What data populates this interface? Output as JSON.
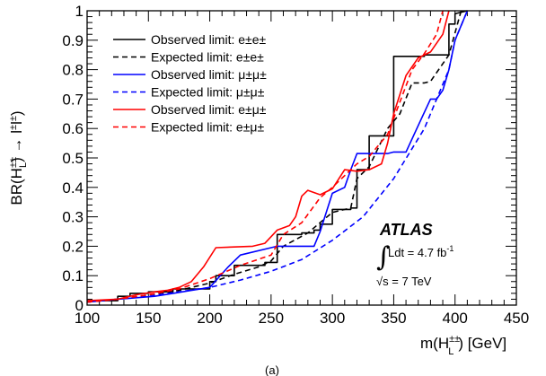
{
  "chart_data": {
    "type": "line",
    "xlabel_base": "m(H",
    "xlabel_sup": "±±",
    "xlabel_sub": "L",
    "xlabel_tail": ") [GeV]",
    "ylabel_base": "BR(H",
    "ylabel_sup": "±±",
    "ylabel_sub": "L",
    "ylabel_tail": " → l",
    "ylabel_tail_sup": "±",
    "ylabel_tail2": "l",
    "ylabel_tail2_sup": "±",
    "ylabel_close": ")",
    "xlim": [
      100,
      450
    ],
    "ylim": [
      0,
      1
    ],
    "x_ticks": [
      "100",
      "150",
      "200",
      "250",
      "300",
      "350",
      "400",
      "450"
    ],
    "y_ticks": [
      "0",
      "0.1",
      "0.2",
      "0.3",
      "0.4",
      "0.5",
      "0.6",
      "0.7",
      "0.8",
      "0.9",
      "1"
    ],
    "colors": {
      "ee": "#000000",
      "mumu": "#0000ff",
      "emu": "#ff0000"
    },
    "series": [
      {
        "name": "Observed limit: e±e±",
        "color": "#000000",
        "style": "solid",
        "x": [
          100,
          125,
          125,
          135,
          135,
          150,
          150,
          170,
          170,
          200,
          200,
          205,
          205,
          220,
          220,
          245,
          245,
          255,
          255,
          275,
          275,
          285,
          285,
          290,
          290,
          300,
          300,
          315,
          315,
          320,
          320,
          330,
          330,
          350,
          350,
          360,
          360,
          375,
          375,
          395,
          395,
          400,
          400,
          410
        ],
        "y": [
          0.015,
          0.015,
          0.03,
          0.03,
          0.04,
          0.04,
          0.045,
          0.045,
          0.055,
          0.055,
          0.08,
          0.08,
          0.1,
          0.1,
          0.135,
          0.135,
          0.145,
          0.145,
          0.24,
          0.24,
          0.245,
          0.245,
          0.255,
          0.255,
          0.275,
          0.275,
          0.325,
          0.325,
          0.33,
          0.33,
          0.46,
          0.46,
          0.575,
          0.575,
          0.845,
          0.845,
          0.845,
          0.845,
          0.85,
          0.85,
          0.955,
          0.955,
          0.99,
          1.0
        ]
      },
      {
        "name": "Expected limit: e±e±",
        "color": "#000000",
        "style": "dashed",
        "x": [
          100,
          125,
          150,
          175,
          200,
          220,
          240,
          250,
          260,
          280,
          300,
          315,
          320,
          330,
          345,
          355,
          365,
          375,
          380,
          395,
          405
        ],
        "y": [
          0.01,
          0.02,
          0.035,
          0.05,
          0.075,
          0.105,
          0.13,
          0.15,
          0.2,
          0.245,
          0.315,
          0.33,
          0.43,
          0.47,
          0.6,
          0.65,
          0.755,
          0.755,
          0.76,
          0.85,
          1.0
        ]
      },
      {
        "name": "Observed limit: μ±μ±",
        "color": "#0000ff",
        "style": "solid",
        "x": [
          100,
          125,
          140,
          155,
          170,
          185,
          200,
          215,
          225,
          250,
          255,
          265,
          275,
          285,
          290,
          300,
          310,
          315,
          320,
          335,
          345,
          350,
          360,
          370,
          380,
          385,
          390,
          395,
          400,
          410
        ],
        "y": [
          0.01,
          0.02,
          0.025,
          0.03,
          0.04,
          0.05,
          0.06,
          0.13,
          0.17,
          0.195,
          0.2,
          0.2,
          0.2,
          0.2,
          0.25,
          0.38,
          0.4,
          0.46,
          0.515,
          0.515,
          0.515,
          0.52,
          0.52,
          0.61,
          0.7,
          0.7,
          0.73,
          0.8,
          0.9,
          1.0
        ]
      },
      {
        "name": "Expected limit: μ±μ±",
        "color": "#0000ff",
        "style": "dashed",
        "x": [
          100,
          125,
          150,
          175,
          200,
          225,
          250,
          275,
          300,
          325,
          350,
          375,
          385,
          395,
          400,
          410
        ],
        "y": [
          0.01,
          0.02,
          0.03,
          0.045,
          0.06,
          0.085,
          0.115,
          0.155,
          0.22,
          0.3,
          0.43,
          0.6,
          0.7,
          0.8,
          0.9,
          1.0
        ]
      },
      {
        "name": "Observed limit: e±μ±",
        "color": "#ff0000",
        "style": "solid",
        "x": [
          100,
          125,
          140,
          155,
          165,
          175,
          185,
          195,
          205,
          235,
          245,
          255,
          265,
          270,
          275,
          280,
          290,
          300,
          310,
          320,
          330,
          340,
          345,
          350,
          360,
          370,
          380,
          390,
          395
        ],
        "y": [
          0.015,
          0.02,
          0.035,
          0.045,
          0.05,
          0.06,
          0.08,
          0.13,
          0.195,
          0.2,
          0.21,
          0.255,
          0.27,
          0.3,
          0.37,
          0.39,
          0.375,
          0.395,
          0.46,
          0.455,
          0.46,
          0.48,
          0.55,
          0.65,
          0.78,
          0.84,
          0.86,
          0.92,
          1.0
        ]
      },
      {
        "name": "Expected limit: e±μ±",
        "color": "#ff0000",
        "style": "dashed",
        "x": [
          100,
          125,
          150,
          175,
          200,
          225,
          250,
          260,
          275,
          290,
          300,
          320,
          330,
          345,
          355,
          365,
          375,
          385,
          390
        ],
        "y": [
          0.01,
          0.02,
          0.035,
          0.055,
          0.09,
          0.135,
          0.17,
          0.24,
          0.28,
          0.365,
          0.4,
          0.48,
          0.505,
          0.58,
          0.69,
          0.8,
          0.855,
          0.92,
          1.0
        ]
      }
    ],
    "legend": [
      {
        "text": "Observed limit: e±e±",
        "color": "#000000",
        "style": "solid"
      },
      {
        "text": "Expected limit: e±e±",
        "color": "#000000",
        "style": "dashed"
      },
      {
        "text": "Observed limit: μ±μ±",
        "color": "#0000ff",
        "style": "solid"
      },
      {
        "text": "Expected limit: μ±μ±",
        "color": "#0000ff",
        "style": "dashed"
      },
      {
        "text": "Observed limit: e±μ±",
        "color": "#ff0000",
        "style": "solid"
      },
      {
        "text": "Expected limit: e±μ±",
        "color": "#ff0000",
        "style": "dashed"
      }
    ],
    "legend_placement": "top-left",
    "grid": false,
    "annotations": {
      "experiment": "ATLAS",
      "integral_sign": "∫",
      "luminosity": "Ldt = 4.7 fb",
      "luminosity_sup": "-1",
      "energy_sqrt": "√s",
      "energy": " = 7 TeV",
      "caption": "(a)"
    }
  }
}
